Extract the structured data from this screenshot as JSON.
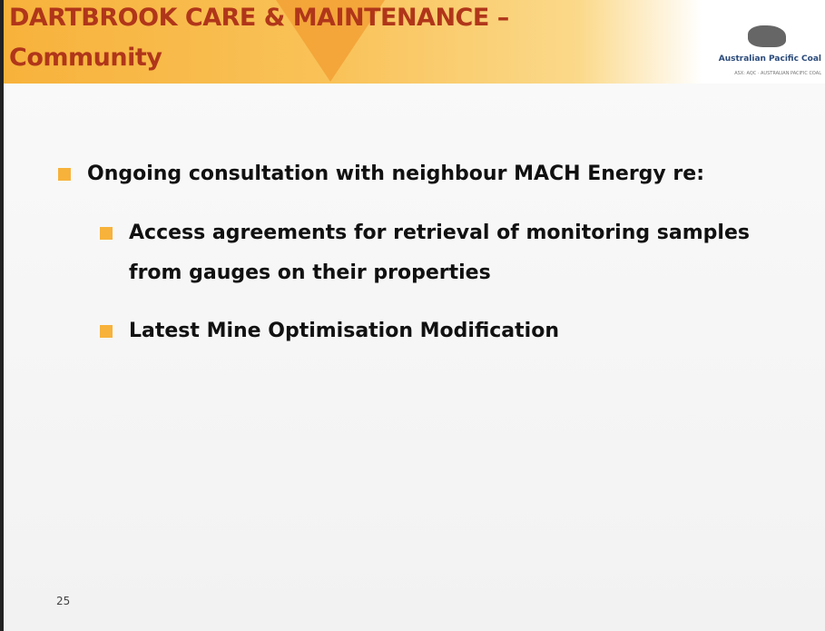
{
  "header": {
    "title_line1": "DARTBROOK CARE & MAINTENANCE –",
    "title_line2": "Community",
    "logo_text": "Australian Pacific Coal",
    "logo_subtext": "ASX: AQC · AUSTRALIAN PACIFIC COAL"
  },
  "bullets": [
    {
      "text": "Ongoing consultation with neighbour MACH Energy re:",
      "children": [
        {
          "text": "Access agreements for retrieval of monitoring samples from gauges on their properties"
        },
        {
          "text": "Latest Mine Optimisation Modification"
        }
      ]
    }
  ],
  "page_number": "25"
}
